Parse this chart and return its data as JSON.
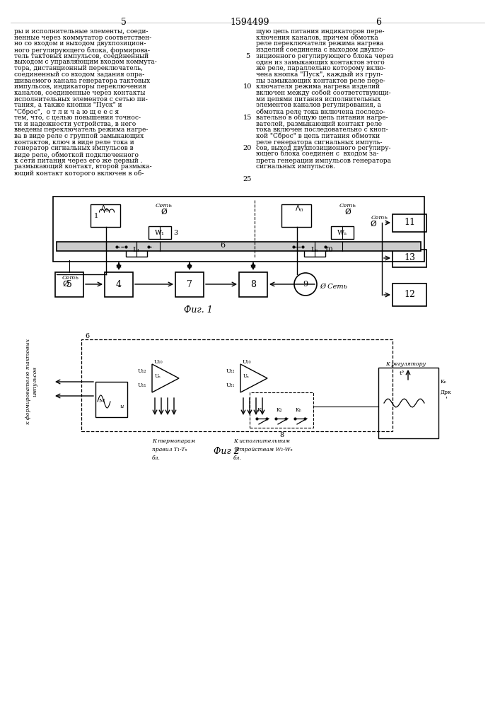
{
  "title": "1594499",
  "page_left": "5",
  "page_right": "6",
  "left_texts": [
    "ры и исполнительные элементы, соеди-",
    "ненные через коммутатор соответствен-",
    "но со входом и выходом двухпозицион-",
    "ного регулирующего блока, формирова-",
    "тель тактовых импульсов, соединенный",
    "выходом с управляющим входом коммута-",
    "тора, дистанционный переключатель,",
    "соединенный со входом задания опра-",
    "шиваемого канала генератора тактовых",
    "импульсов, индикаторы переключения",
    "каналов, соединенные через контакты",
    "исполнительных элементов с сетью пи-",
    "тания, а также кнопки \"Пуск\" и",
    "\"Сброс\",  о т л и ч а ю щ е е с я",
    "тем, что, с целью повышения точнос-",
    "ти и надежности устройства, в него",
    "введены переключатель режима нагре-",
    "ва в виде реле с группой замыкающих",
    "контактов, ключ в виде реле тока и",
    "генератор сигнальных импульсов в",
    "виде реле, обмоткой подключенного",
    "к сети питания через его же первый .",
    "размыкающий контакт, второй размыка-",
    "ющий контакт которого включен в об-"
  ],
  "right_texts": [
    "щую цепь питания индикаторов пере-",
    "ключения каналов, причем обмотка",
    "реле переключателя режима нагрева",
    "изделий соединена с выходом двухпо-",
    "зиционного регулирующего блока через",
    "один из замыкающих контактов этого",
    "же реле, параллельно которому вклю-",
    "чена кнопка \"Пуск\", каждый из груп-",
    "пы замыкающих контактов реле пере-",
    "ключателя режима нагрева изделий",
    "включен между собой соответствующи-",
    "ми цепями питания исполнительных",
    "элементов каналов регулирования, а",
    "обмотка реле тока включена последо-",
    "вательно в общую цепь питания нагре-",
    "вателей, размыкающий контакт реле",
    "тока включен последовательно с кноп-",
    "кой \"Сброс\" в цепь питания обмотки",
    "реле генератора сигнальных импуль-",
    "сов, выход двухпозиционного регулиру-",
    "ющего блока соединен с  входом за-",
    "прета генерации импульсов генератора",
    "сигнальных импульсов."
  ],
  "fig1_label": "Фиг. 1",
  "fig2_label": "Фиг 2"
}
